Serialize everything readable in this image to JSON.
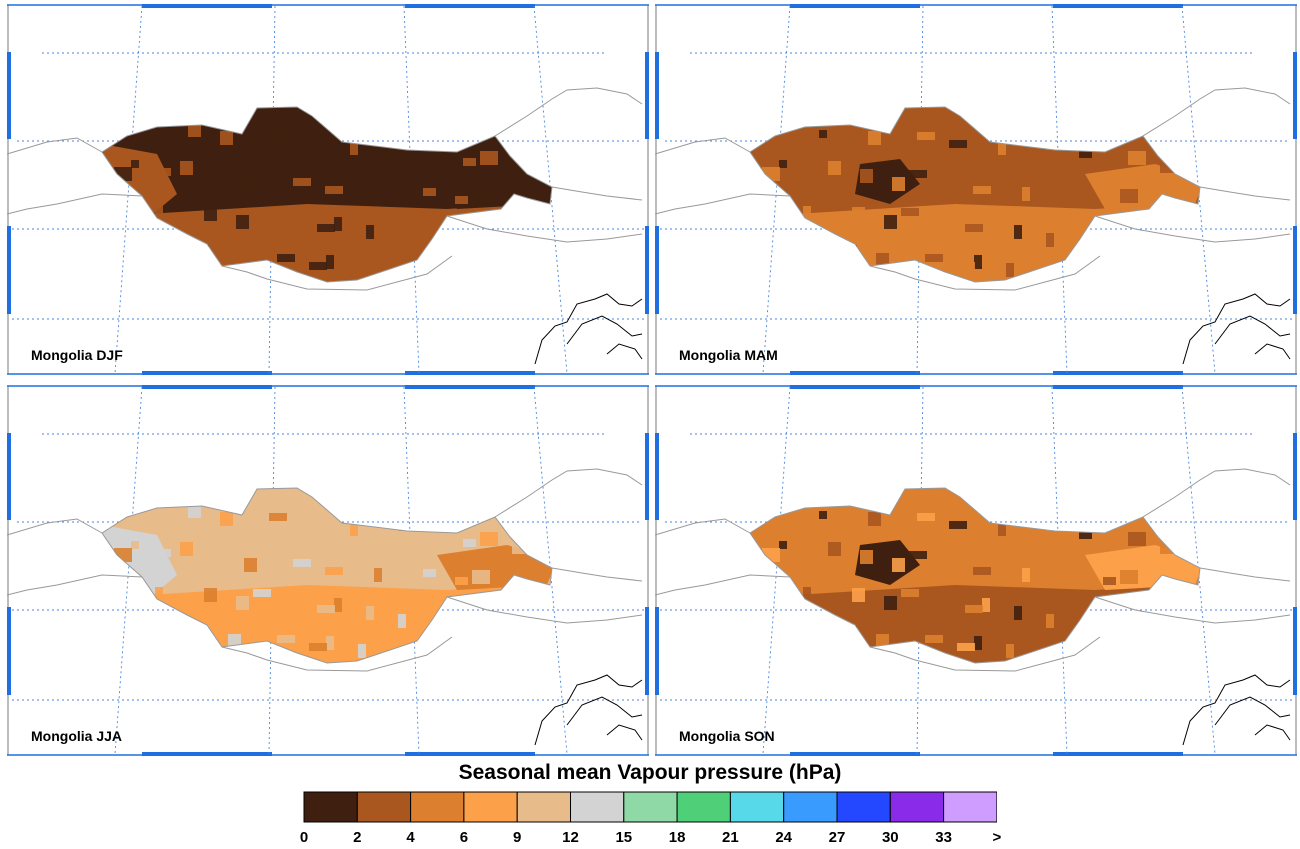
{
  "panels": [
    {
      "label": "Mongolia DJF",
      "palette": [
        0,
        1,
        1,
        0,
        0
      ]
    },
    {
      "label": "Mongolia MAM",
      "palette": [
        1,
        2,
        1,
        0,
        2
      ]
    },
    {
      "label": "Mongolia JJA",
      "palette": [
        4,
        3,
        5,
        4,
        2
      ]
    },
    {
      "label": "Mongolia SON",
      "palette": [
        2,
        1,
        2,
        0,
        3
      ]
    }
  ],
  "legend": {
    "title": "Seasonal mean Vapour pressure (hPa)",
    "colors": [
      "#3f2010",
      "#a9571f",
      "#dc7f2f",
      "#fca14a",
      "#e8bb8b",
      "#d3d3d3",
      "#8fd9a6",
      "#4ecf78",
      "#57d9e9",
      "#3a9bff",
      "#2448ff",
      "#8a2bea",
      "#cf9cff"
    ],
    "tick_labels": [
      "0",
      "2",
      "4",
      "6",
      "9",
      "12",
      "15",
      "18",
      "21",
      "24",
      "27",
      "30",
      "33",
      ">"
    ]
  },
  "colors": {
    "frame": "#1f6fe0",
    "grid": "#4a86dd",
    "border": "#999999",
    "coast": "#000000"
  }
}
